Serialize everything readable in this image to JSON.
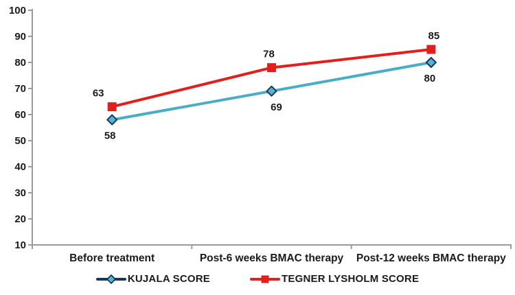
{
  "chart_data": {
    "type": "line",
    "title": "",
    "categories": [
      "Before treatment",
      "Post-6 weeks BMAC therapy",
      "Post-12 weeks BMAC therapy"
    ],
    "series": [
      {
        "name": "KUJALA SCORE",
        "values": [
          58,
          69,
          80
        ],
        "line_color": "#4bacc6",
        "marker": "diamond",
        "marker_fill": "#58b2d0",
        "marker_border": "#17375e",
        "legend_line_color": "#17375e",
        "label_position": "below"
      },
      {
        "name": "TEGNER LYSHOLM SCORE",
        "values": [
          63,
          78,
          85
        ],
        "line_color": "#e1201e",
        "marker": "square",
        "marker_fill": "#e1201e",
        "marker_border": "#e1201e",
        "legend_line_color": "#e1201e",
        "label_position": "above"
      }
    ],
    "xlabel": "",
    "ylabel": "",
    "y_axis": {
      "min": 10,
      "max": 100,
      "step": 10,
      "tick_labels": [
        "10",
        "20",
        "30",
        "40",
        "50",
        "60",
        "70",
        "80",
        "90",
        "100"
      ]
    },
    "grid": false,
    "legend_position": "bottom",
    "axis_color": "#9a9a9a",
    "text_color": "#1a1a1a",
    "background_color": "#ffffff"
  }
}
